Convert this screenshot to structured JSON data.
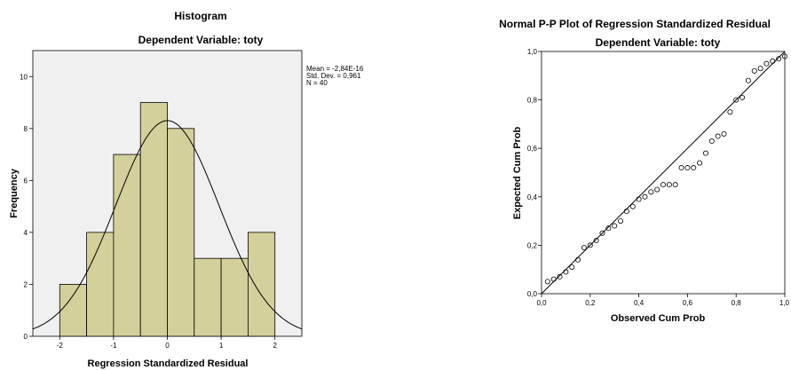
{
  "chart_data": [
    {
      "type": "bar",
      "title": "Histogram",
      "subtitle": "Dependent Variable: toty",
      "xlabel": "Regression Standardized Residual",
      "ylabel": "Frequency",
      "bin_edges": [
        -2,
        -1.5,
        -1,
        -0.5,
        0,
        0.5,
        1,
        1.5,
        2
      ],
      "values": [
        2,
        4,
        7,
        9,
        8,
        3,
        3,
        4
      ],
      "xlim": [
        -2.5,
        2.5
      ],
      "ylim": [
        0,
        11
      ],
      "x_ticks": [
        "-2",
        "-1",
        "0",
        "1",
        "2"
      ],
      "y_ticks": [
        "0",
        "2",
        "4",
        "6",
        "8",
        "10"
      ],
      "normal_curve": {
        "mean": 0,
        "sd": 0.961
      },
      "stats": [
        "Mean = -2,84E-16",
        "Std. Dev. = 0,961",
        "N = 40"
      ],
      "bar_color": "#d4d09b",
      "plot_background": "#f0f0f0"
    },
    {
      "type": "scatter",
      "title": "Normal P-P Plot of Regression Standardized Residual",
      "subtitle": "Dependent Variable: toty",
      "xlabel": "Observed Cum Prob",
      "ylabel": "Expected Cum Prob",
      "xlim": [
        0,
        1
      ],
      "ylim": [
        0,
        1
      ],
      "x_ticks": [
        "0,0",
        "0,2",
        "0,4",
        "0,6",
        "0,8",
        "1,0"
      ],
      "y_ticks": [
        "0,0",
        "0,2",
        "0,4",
        "0,6",
        "0,8",
        "1,0"
      ],
      "reference_line": [
        [
          0,
          0
        ],
        [
          1,
          1
        ]
      ],
      "points": [
        [
          0.025,
          0.05
        ],
        [
          0.05,
          0.06
        ],
        [
          0.075,
          0.07
        ],
        [
          0.1,
          0.09
        ],
        [
          0.125,
          0.11
        ],
        [
          0.15,
          0.14
        ],
        [
          0.175,
          0.19
        ],
        [
          0.2,
          0.2
        ],
        [
          0.225,
          0.22
        ],
        [
          0.25,
          0.25
        ],
        [
          0.275,
          0.27
        ],
        [
          0.3,
          0.28
        ],
        [
          0.325,
          0.3
        ],
        [
          0.35,
          0.34
        ],
        [
          0.375,
          0.36
        ],
        [
          0.4,
          0.39
        ],
        [
          0.425,
          0.4
        ],
        [
          0.45,
          0.42
        ],
        [
          0.475,
          0.43
        ],
        [
          0.5,
          0.45
        ],
        [
          0.525,
          0.45
        ],
        [
          0.55,
          0.45
        ],
        [
          0.575,
          0.52
        ],
        [
          0.6,
          0.52
        ],
        [
          0.625,
          0.52
        ],
        [
          0.65,
          0.54
        ],
        [
          0.675,
          0.58
        ],
        [
          0.7,
          0.63
        ],
        [
          0.725,
          0.65
        ],
        [
          0.75,
          0.66
        ],
        [
          0.775,
          0.75
        ],
        [
          0.8,
          0.8
        ],
        [
          0.825,
          0.81
        ],
        [
          0.85,
          0.88
        ],
        [
          0.875,
          0.92
        ],
        [
          0.9,
          0.93
        ],
        [
          0.925,
          0.95
        ],
        [
          0.95,
          0.96
        ],
        [
          0.975,
          0.97
        ],
        [
          1.0,
          0.98
        ]
      ]
    }
  ]
}
